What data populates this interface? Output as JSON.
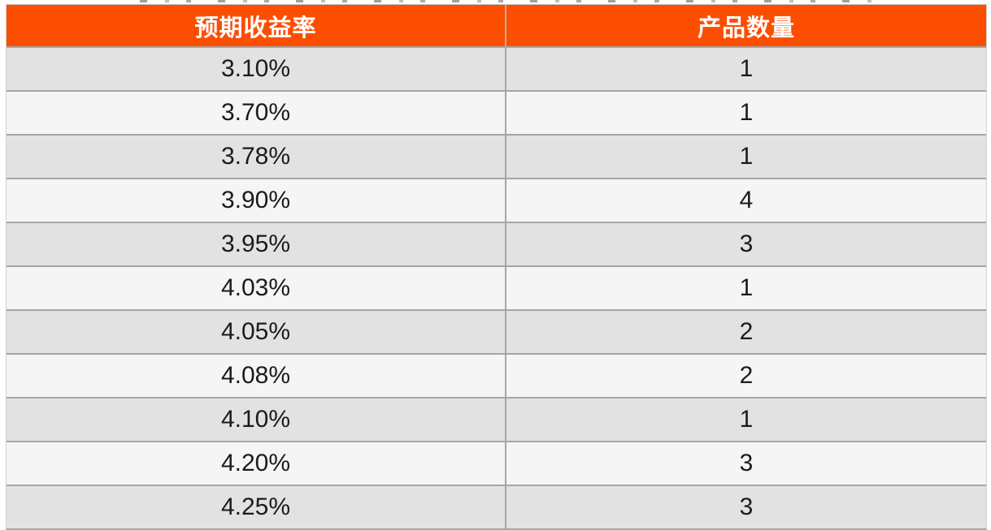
{
  "table": {
    "columns": [
      "预期收益率",
      "产品数量"
    ],
    "rows": [
      [
        "3.10%",
        "1"
      ],
      [
        "3.70%",
        "1"
      ],
      [
        "3.78%",
        "1"
      ],
      [
        "3.90%",
        "4"
      ],
      [
        "3.95%",
        "3"
      ],
      [
        "4.03%",
        "1"
      ],
      [
        "4.05%",
        "2"
      ],
      [
        "4.08%",
        "2"
      ],
      [
        "4.10%",
        "1"
      ],
      [
        "4.20%",
        "3"
      ],
      [
        "4.25%",
        "3"
      ]
    ]
  },
  "chart_data": {
    "type": "table",
    "title": "",
    "columns": [
      "预期收益率",
      "产品数量"
    ],
    "rows": [
      [
        "3.10%",
        1
      ],
      [
        "3.70%",
        1
      ],
      [
        "3.78%",
        1
      ],
      [
        "3.90%",
        4
      ],
      [
        "3.95%",
        3
      ],
      [
        "4.03%",
        1
      ],
      [
        "4.05%",
        2
      ],
      [
        "4.08%",
        2
      ],
      [
        "4.10%",
        1
      ],
      [
        "4.20%",
        3
      ],
      [
        "4.25%",
        3
      ]
    ],
    "layout_hints": {
      "header_style": "orange banner, white bold text, centered",
      "rows_style": "zebra striping starting dark gray, values centered",
      "grid": "horizontal gray separators + single vertical column divider"
    }
  },
  "colors": {
    "header_bg": "#FC4E00",
    "header_text": "#FFFFFF",
    "row_dark": "#E2E2E2",
    "row_light": "#F5F5F5",
    "border": "#A6A6A6",
    "text": "#1B1B1B"
  }
}
